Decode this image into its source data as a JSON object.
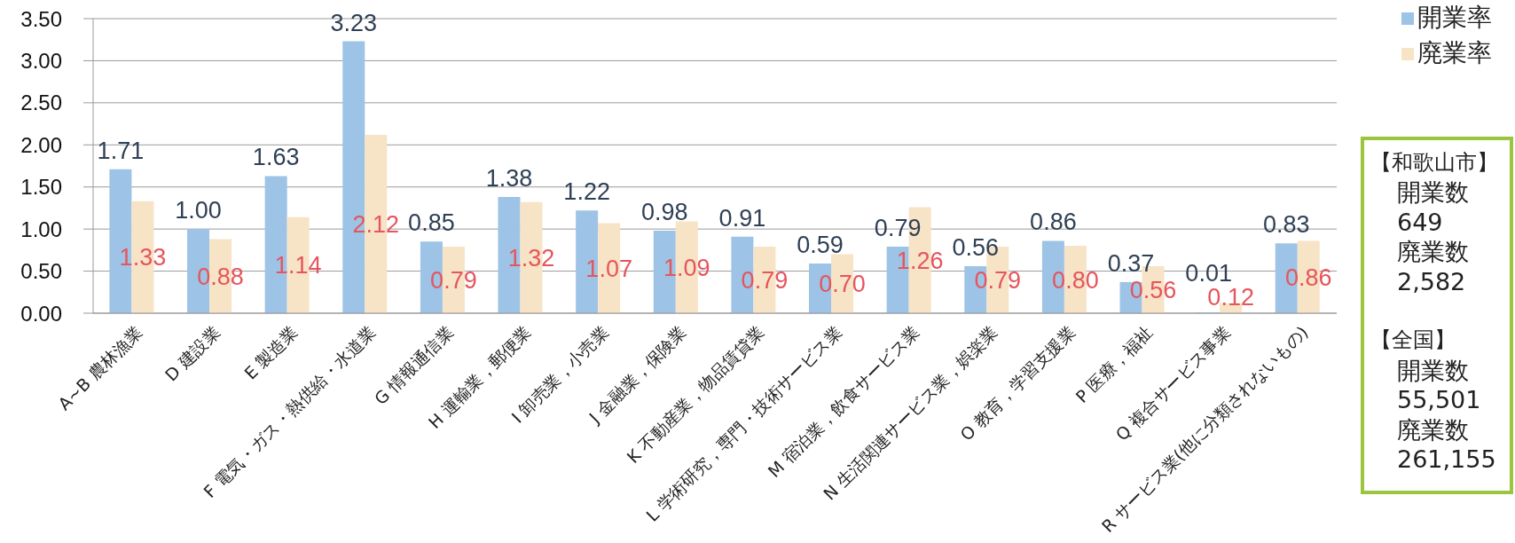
{
  "chart_data": {
    "type": "bar",
    "categories": [
      "A~B 農林漁業",
      "D 建設業",
      "E 製造業",
      "F 電気・ガス・熱供給・水道業",
      "G 情報通信業",
      "H 運輸業，郵便業",
      "I 卸売業，小売業",
      "J 金融業，保険業",
      "K 不動産業，物品賃貸業",
      "L 学術研究，専門・技術サービス業",
      "M 宿泊業，飲食サービス業",
      "N 生活関連サービス業，娯楽業",
      "O 教育，学習支援業",
      "P 医療，福祉",
      "Q 複合サービス事業",
      "R サービス業(他に分類されないもの)"
    ],
    "series": [
      {
        "name": "開業率",
        "color": "#9dc3e6",
        "values": [
          1.71,
          1.0,
          1.63,
          3.23,
          0.85,
          1.38,
          1.22,
          0.98,
          0.91,
          0.59,
          0.79,
          0.56,
          0.86,
          0.37,
          0.01,
          0.83
        ],
        "value_labels": [
          "1.71",
          "1.00",
          "1.63",
          "3.23",
          "0.85",
          "1.38",
          "1.22",
          "0.98",
          "0.91",
          "0.59",
          "0.79",
          "0.56",
          "0.86",
          "0.37",
          "0.01",
          "0.83"
        ]
      },
      {
        "name": "廃業率",
        "color": "#f7e3c6",
        "values": [
          1.33,
          0.88,
          1.14,
          2.12,
          0.79,
          1.32,
          1.07,
          1.09,
          0.79,
          0.7,
          1.26,
          0.79,
          0.8,
          0.56,
          0.12,
          0.86
        ],
        "value_labels": [
          "1.33",
          "0.88",
          "1.14",
          "2.12",
          "0.79",
          "1.32",
          "1.07",
          "1.09",
          "0.79",
          "0.70",
          "1.26",
          "0.79",
          "0.80",
          "0.56",
          "0.12",
          "0.86"
        ]
      }
    ],
    "ylim": [
      0,
      3.5
    ],
    "yticks": [
      {
        "value": 0,
        "label": "0.00"
      },
      {
        "value": 0.5,
        "label": "0.50"
      },
      {
        "value": 1,
        "label": "1.00"
      },
      {
        "value": 1.5,
        "label": "1.50"
      },
      {
        "value": 2,
        "label": "2.00"
      },
      {
        "value": 2.5,
        "label": "2.50"
      },
      {
        "value": 3,
        "label": "3.00"
      },
      {
        "value": 3.5,
        "label": "3.50"
      }
    ],
    "grid": "y",
    "legend": "top right",
    "annotations": [
      "【和歌山市】",
      "開業数",
      "649",
      "廃業数",
      "2,582",
      "【全国】",
      "開業数",
      "55,501",
      "廃業数",
      "261,155"
    ]
  }
}
